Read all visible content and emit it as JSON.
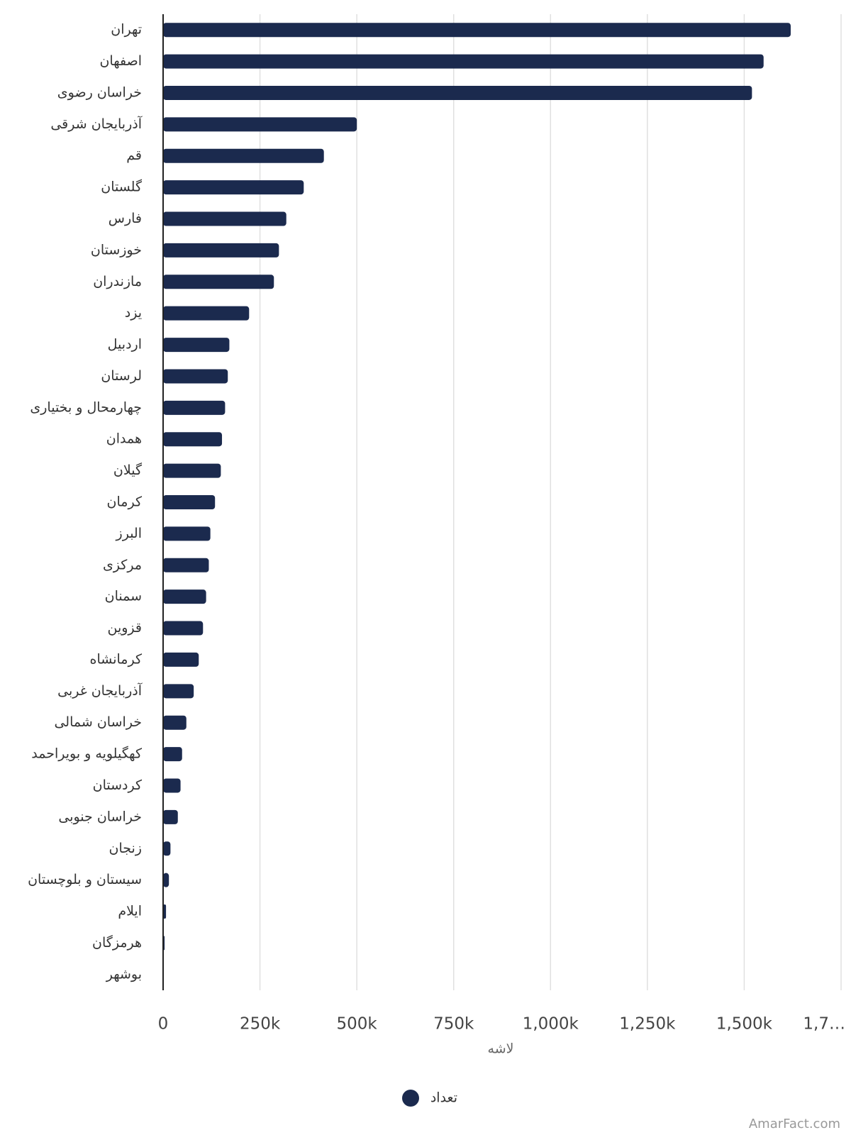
{
  "chart_data": {
    "type": "bar",
    "orientation": "horizontal",
    "categories": [
      "تهران",
      "اصفهان",
      "خراسان رضوی",
      "آذربایجان شرقی",
      "قم",
      "گلستان",
      "فارس",
      "خوزستان",
      "مازندران",
      "یزد",
      "اردبیل",
      "لرستان",
      "چهارمحال و بختیاری",
      "همدان",
      "گیلان",
      "کرمان",
      "البرز",
      "مرکزی",
      "سمنان",
      "قزوین",
      "کرمانشاه",
      "آذربایجان غربی",
      "خراسان شمالی",
      "کهگیلویه و بویراحمد",
      "کردستان",
      "خراسان جنوبی",
      "زنجان",
      "سیستان و بلوچستان",
      "ایلام",
      "هرمزگان",
      "بوشهر"
    ],
    "series": [
      {
        "name": "تعداد",
        "color": "#1b2a4e",
        "values": [
          1620000,
          1550000,
          1520000,
          500000,
          415000,
          363000,
          318000,
          299000,
          286000,
          222000,
          171000,
          167000,
          160000,
          152000,
          149000,
          134000,
          122000,
          118000,
          111000,
          103000,
          92000,
          79000,
          60000,
          49000,
          45000,
          38000,
          19000,
          15000,
          7500,
          3800,
          0
        ]
      }
    ],
    "xlim": [
      0,
      1750000
    ],
    "xticks": [
      0,
      {
        "value": 250000,
        "label": "250k"
      },
      {
        "value": 500000,
        "label": "500k"
      },
      {
        "value": 750000,
        "label": "750k"
      },
      {
        "value": 1000000,
        "label": "1,000k"
      },
      {
        "value": 1250000,
        "label": "1,250k"
      },
      {
        "value": 1500000,
        "label": "1,500k"
      },
      {
        "value": 1750000,
        "label": "1,7…"
      }
    ],
    "xlabel": "لاشه",
    "grid": true,
    "legend": "bottom",
    "watermark": "AmarFact.com"
  }
}
